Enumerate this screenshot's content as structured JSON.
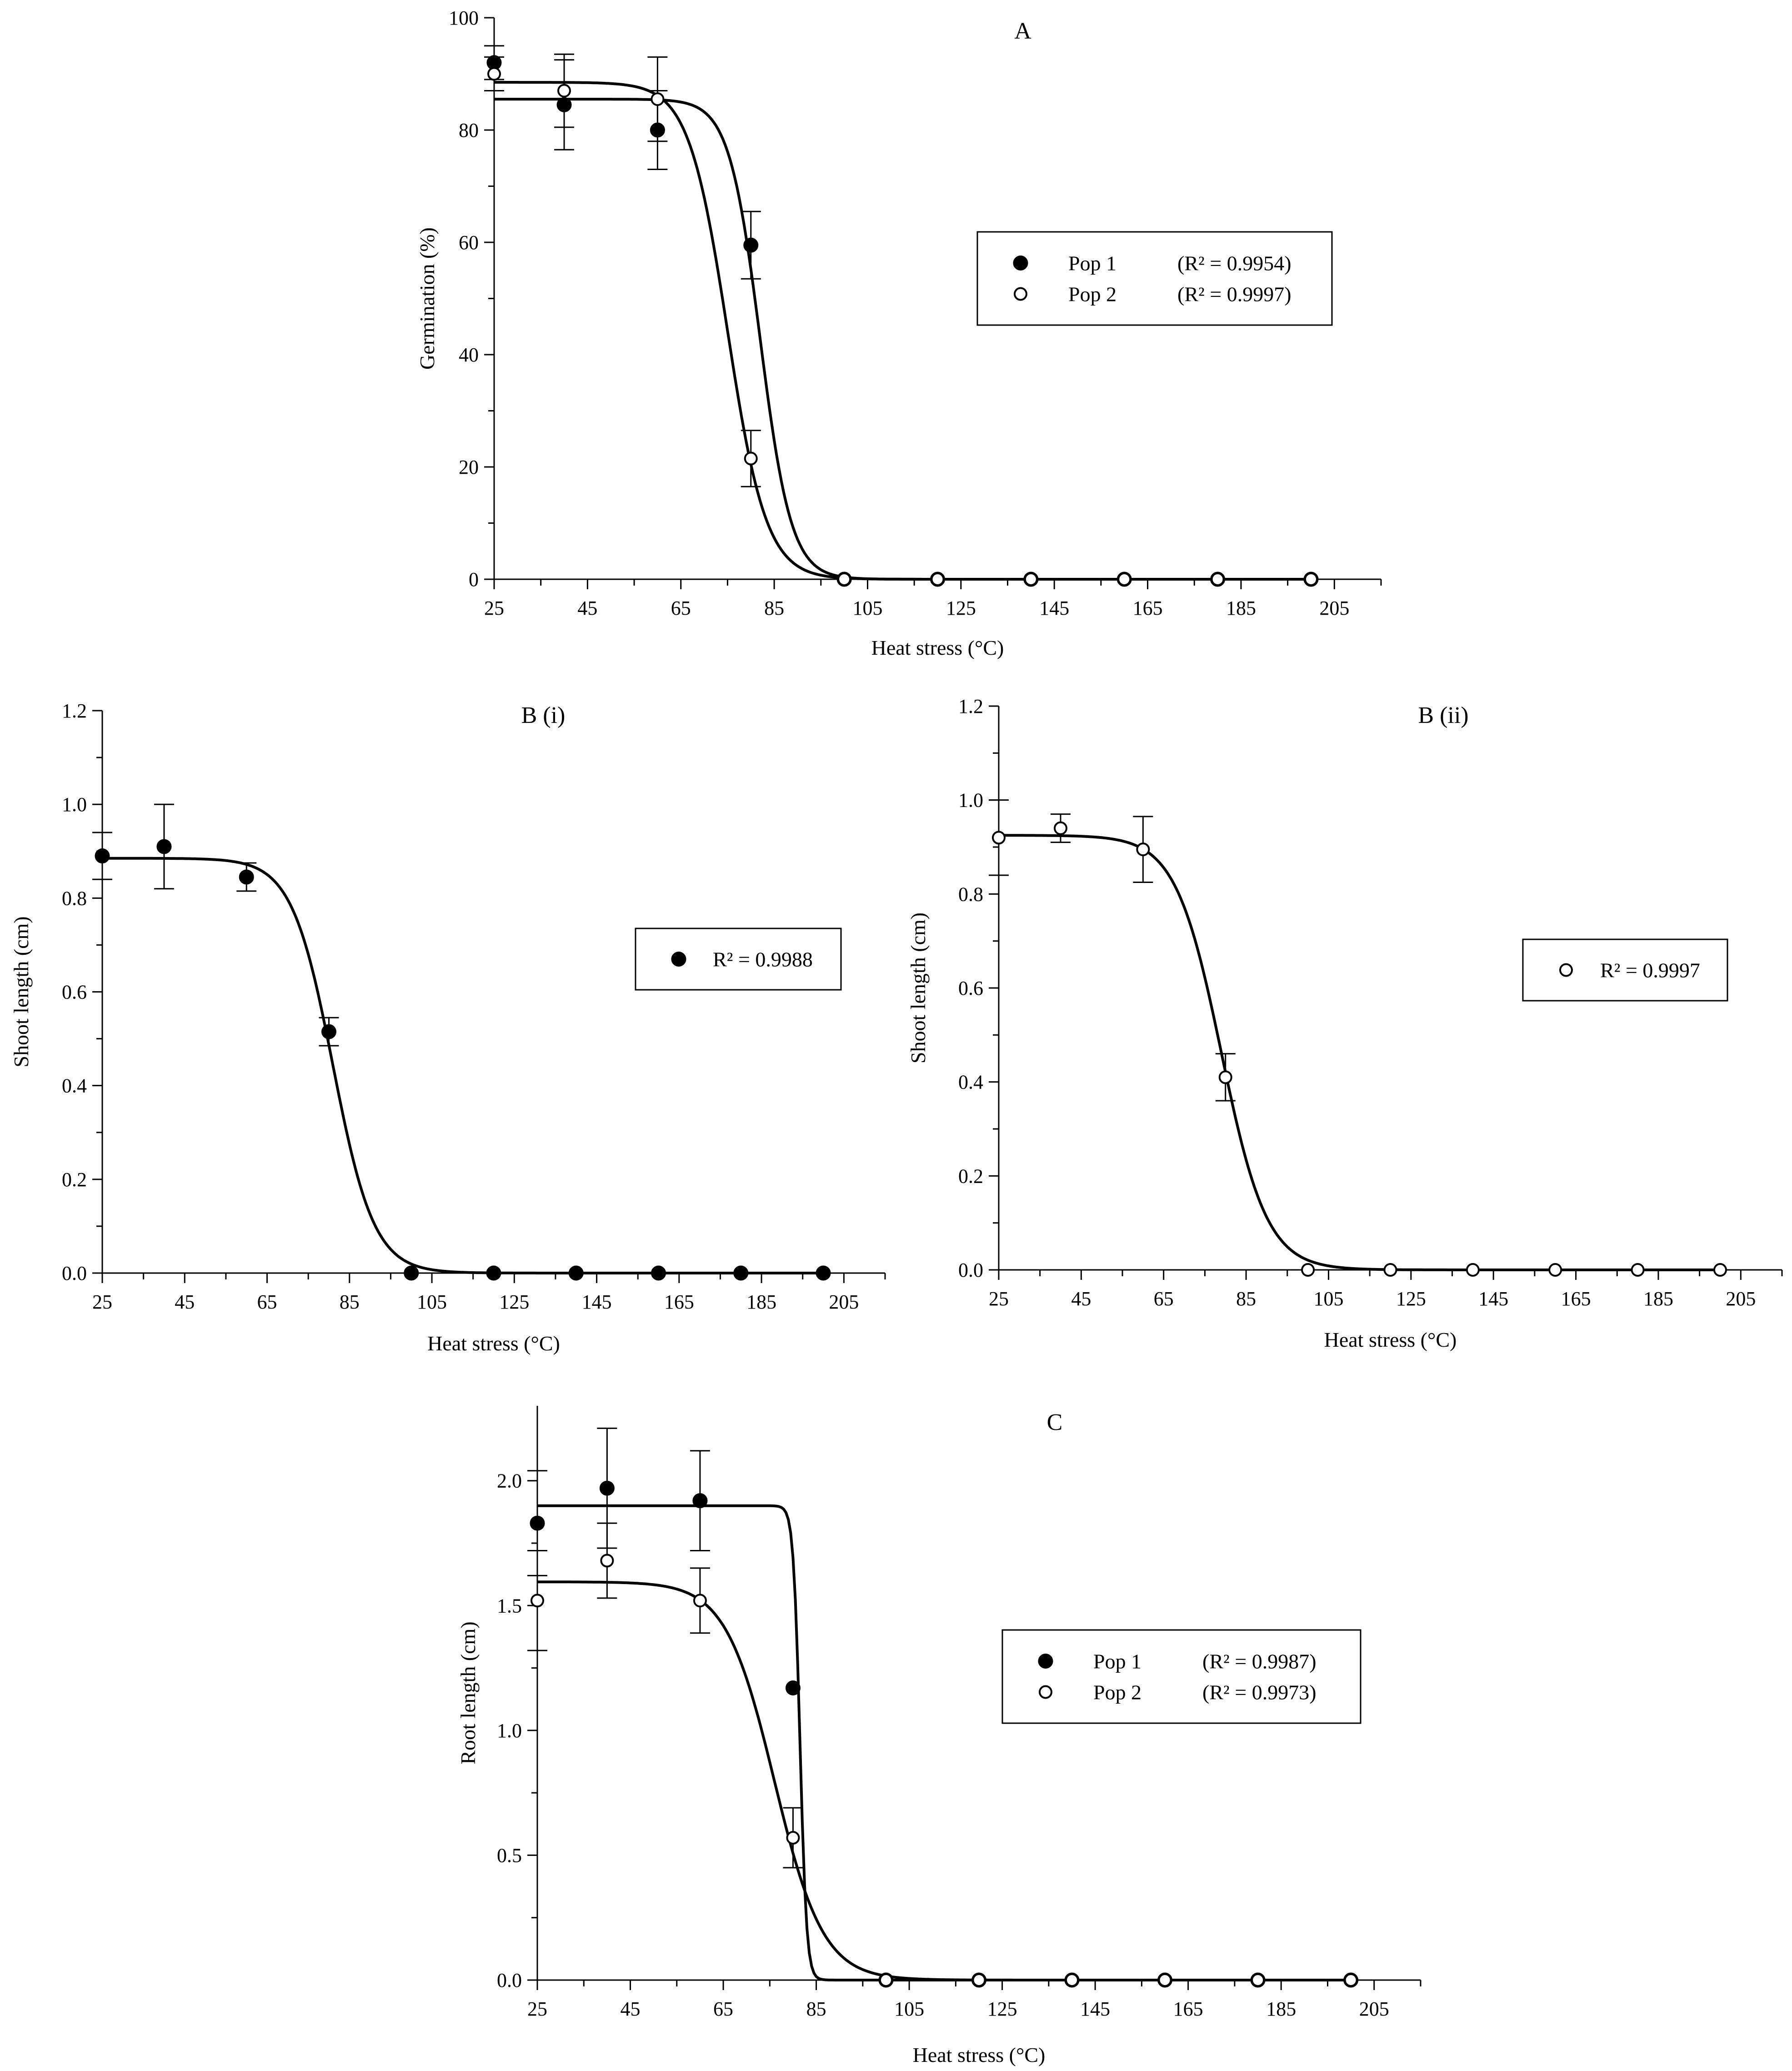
{
  "chart_data": [
    {
      "type": "scatter",
      "panel": "A",
      "title": "A",
      "xlabel": "Heat stress (°C)",
      "ylabel": "Germination (%)",
      "xlim": [
        25,
        215
      ],
      "ylim": [
        0,
        100
      ],
      "xticks": [
        "25",
        "45",
        "65",
        "85",
        "105",
        "125",
        "145",
        "165",
        "185",
        "205"
      ],
      "yticks": [
        "0",
        "20",
        "40",
        "60",
        "80",
        "100"
      ],
      "legend": {
        "placement": "right"
      },
      "series": [
        {
          "name": "Pop 1",
          "r2": "(R² = 0.9954)",
          "marker": "filled",
          "x": [
            25,
            40,
            60,
            80,
            100,
            120,
            140,
            160,
            180,
            200
          ],
          "y": [
            92,
            84.5,
            80,
            59.5,
            0,
            0,
            0,
            0,
            0,
            0
          ],
          "err": [
            3,
            8,
            7,
            6,
            0,
            0,
            0,
            0,
            0,
            0
          ],
          "fit": {
            "top": 85.5,
            "x50": 82,
            "slope": 0.3
          }
        },
        {
          "name": "Pop 2",
          "r2": "(R² = 0.9997)",
          "marker": "open",
          "x": [
            25,
            40,
            60,
            80,
            100,
            120,
            140,
            160,
            180,
            200
          ],
          "y": [
            90,
            87,
            85.5,
            21.5,
            0,
            0,
            0,
            0,
            0,
            0
          ],
          "err": [
            3,
            6.5,
            7.5,
            5,
            0,
            0,
            0,
            0,
            0,
            0
          ],
          "fit": {
            "top": 88.5,
            "x50": 75,
            "slope": 0.24
          }
        }
      ]
    },
    {
      "type": "scatter",
      "panel": "B (i)",
      "title": "B (i)",
      "xlabel": "Heat stress (°C)",
      "ylabel": "Shoot length (cm)",
      "xlim": [
        25,
        215
      ],
      "ylim": [
        0,
        1.2
      ],
      "xticks": [
        "25",
        "45",
        "65",
        "85",
        "105",
        "125",
        "145",
        "165",
        "185",
        "205"
      ],
      "yticks": [
        "0.0",
        "0.2",
        "0.4",
        "0.6",
        "0.8",
        "1.0",
        "1.2"
      ],
      "legend": {
        "placement": "right"
      },
      "series": [
        {
          "r2": "R² = 0.9988",
          "marker": "filled",
          "x": [
            25,
            40,
            60,
            80,
            100,
            120,
            140,
            160,
            180,
            200
          ],
          "y": [
            0.89,
            0.91,
            0.845,
            0.515,
            0,
            0,
            0,
            0,
            0,
            0
          ],
          "err": [
            0.05,
            0.09,
            0.03,
            0.03,
            0,
            0,
            0,
            0,
            0,
            0
          ],
          "fit": {
            "top": 0.885,
            "x50": 81,
            "slope": 0.2
          }
        }
      ]
    },
    {
      "type": "scatter",
      "panel": "B (ii)",
      "title": "B (ii)",
      "xlabel": "Heat stress (°C)",
      "ylabel": "Shoot length (cm)",
      "xlim": [
        25,
        215
      ],
      "ylim": [
        0,
        1.2
      ],
      "xticks": [
        "25",
        "45",
        "65",
        "85",
        "105",
        "125",
        "145",
        "165",
        "185",
        "205"
      ],
      "yticks": [
        "0.0",
        "0.2",
        "0.4",
        "0.6",
        "0.8",
        "1.0",
        "1.2"
      ],
      "legend": {
        "placement": "right"
      },
      "series": [
        {
          "r2": "R² = 0.9997",
          "marker": "open",
          "x": [
            25,
            40,
            60,
            80,
            100,
            120,
            140,
            160,
            180,
            200
          ],
          "y": [
            0.92,
            0.94,
            0.895,
            0.41,
            0,
            0,
            0,
            0,
            0,
            0
          ],
          "err": [
            0.08,
            0.03,
            0.07,
            0.05,
            0,
            0,
            0,
            0,
            0,
            0
          ],
          "fit": {
            "top": 0.925,
            "x50": 79,
            "slope": 0.18
          }
        }
      ]
    },
    {
      "type": "scatter",
      "panel": "C",
      "title": "C",
      "xlabel": "Heat stress (°C)",
      "ylabel": "Root length (cm)",
      "xlim": [
        25,
        215
      ],
      "ylim": [
        0,
        2.3
      ],
      "xticks": [
        "25",
        "45",
        "65",
        "85",
        "105",
        "125",
        "145",
        "165",
        "185",
        "205"
      ],
      "yticks": [
        "0.0",
        "0.5",
        "1.0",
        "1.5",
        "2.0"
      ],
      "legend": {
        "placement": "right"
      },
      "series": [
        {
          "name": "Pop 1",
          "r2": "(R² = 0.9987)",
          "marker": "filled",
          "x": [
            25,
            40,
            60,
            80,
            100,
            120,
            140,
            160,
            180,
            200
          ],
          "y": [
            1.83,
            1.97,
            1.92,
            1.17,
            0,
            0,
            0,
            0,
            0,
            0
          ],
          "err": [
            0.21,
            0.24,
            0.2,
            0,
            0,
            0,
            0,
            0,
            0,
            0
          ],
          "fit": {
            "top": 1.9,
            "x50": 81.5,
            "slope": 1.4
          }
        },
        {
          "name": "Pop 2",
          "r2": "(R² = 0.9973)",
          "marker": "open",
          "x": [
            25,
            40,
            60,
            80,
            100,
            120,
            140,
            160,
            180,
            200
          ],
          "y": [
            1.52,
            1.68,
            1.52,
            0.57,
            0,
            0,
            0,
            0,
            0,
            0
          ],
          "err": [
            0.2,
            0.15,
            0.13,
            0.12,
            0,
            0,
            0,
            0,
            0,
            0
          ],
          "fit": {
            "top": 1.595,
            "x50": 76,
            "slope": 0.19
          }
        }
      ]
    }
  ]
}
